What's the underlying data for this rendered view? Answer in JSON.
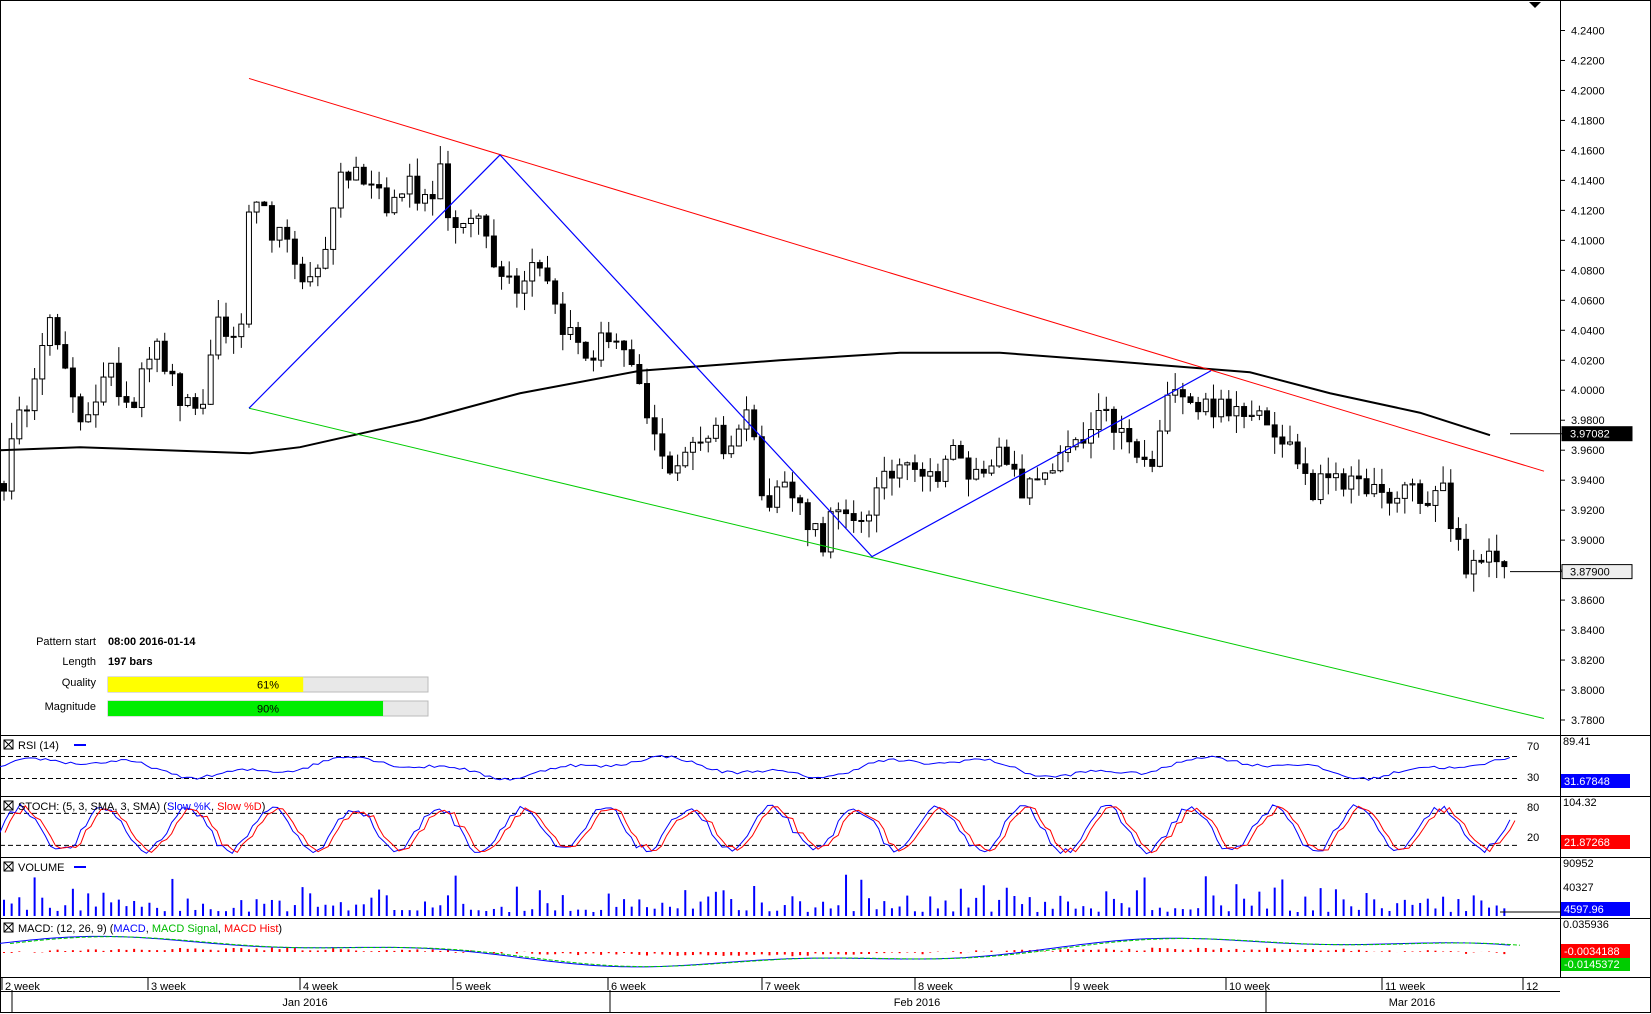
{
  "chart_data": {
    "type": "candlestick",
    "symbol_note": "",
    "main": {
      "ylim": [
        3.77,
        4.255
      ],
      "y_ticks": [
        "4.2400",
        "4.2200",
        "4.2000",
        "4.1800",
        "4.1600",
        "4.1400",
        "4.1200",
        "4.1000",
        "4.0800",
        "4.0600",
        "4.0400",
        "4.0200",
        "4.0000",
        "3.9800",
        "3.9600",
        "3.9400",
        "3.9200",
        "3.9000",
        "3.8800",
        "3.8600",
        "3.8400",
        "3.8200",
        "3.8000",
        "3.7800"
      ],
      "bar_count": 197,
      "candles_seed_closes": [
        3.94,
        3.97,
        3.99,
        4.02,
        4.05,
        4.03,
        4.0,
        3.98,
        3.99,
        4.0,
        4.01,
        4.0,
        3.99,
        4.02,
        4.03,
        4.02,
        4.0,
        3.99,
        3.98,
        4.0,
        4.05,
        4.04,
        4.02,
        4.11,
        4.12,
        4.11,
        4.1,
        4.09,
        4.08,
        4.07,
        4.09,
        4.13,
        4.14,
        4.15,
        4.13,
        4.14,
        4.12,
        4.13,
        4.14,
        4.13,
        4.13,
        4.15,
        4.11,
        4.1,
        4.12,
        4.11,
        4.09,
        4.08,
        4.07,
        4.08,
        4.09,
        4.08,
        4.05,
        4.04,
        4.03,
        4.02,
        4.03,
        4.04,
        4.03,
        4.01,
        3.99,
        3.97,
        3.95,
        3.95,
        3.96,
        3.96,
        3.97,
        3.98,
        3.95,
        3.98,
        3.99,
        3.94,
        3.93,
        3.94,
        3.93,
        3.92,
        3.91,
        3.9,
        3.92,
        3.91,
        3.91,
        3.92,
        3.93,
        3.94,
        3.95,
        3.96,
        3.95,
        3.94,
        3.95,
        3.96,
        3.95,
        3.94,
        3.95,
        3.96,
        3.95,
        3.94,
        3.93,
        3.94,
        3.95,
        3.95,
        3.96,
        3.96,
        3.97,
        3.98,
        3.98,
        3.97,
        3.96,
        3.95,
        3.95,
        3.98,
        4.01,
        4.0,
        3.99,
        3.99,
        3.99,
        3.98,
        3.99,
        3.99,
        3.99,
        3.98,
        3.97,
        3.96,
        3.95,
        3.93,
        3.94,
        3.95,
        3.94,
        3.93,
        3.94,
        3.93,
        3.92,
        3.93,
        3.94,
        3.93,
        3.92,
        3.94,
        3.91,
        3.89,
        3.88,
        3.88,
        3.89,
        3.88
      ],
      "moving_average_label": "",
      "current_price_label": "3.87900",
      "ma_price_label": "3.97082",
      "pattern_lines": {
        "upper_resistance": {
          "color": "#ff0000"
        },
        "lower_support": {
          "color": "#00cc00"
        },
        "zigzag": {
          "color": "#0000ff"
        }
      }
    },
    "x_axis": {
      "week_labels": [
        "2 week",
        "3 week",
        "4 week",
        "5 week",
        "6 week",
        "7 week",
        "8 week",
        "9 week",
        "10 week",
        "11 week",
        "12"
      ],
      "month_labels": [
        "Jan 2016",
        "Feb 2016",
        "Mar 2016"
      ]
    },
    "rsi": {
      "title": "RSI (14)",
      "levels": [
        "70",
        "30"
      ],
      "top_value": "89.41",
      "current": "31.67848",
      "color": "#0000ff"
    },
    "stoch": {
      "title_prefix": "STOCH: (5, 3, SMA, 3, SMA) (",
      "k_label": "Slow %K",
      "sep": ", ",
      "d_label": "Slow %D",
      "title_suffix": ")",
      "levels": [
        "80",
        "20"
      ],
      "top_value": "104.32",
      "current": "21.87268",
      "k_color": "#0000ff",
      "d_color": "#ff0000"
    },
    "volume": {
      "title": "VOLUME",
      "top_value": "90952",
      "mid_value": "40327",
      "current": "4597.96",
      "color": "#0000ff"
    },
    "macd": {
      "title_prefix": "MACD: (12, 26, 9) (",
      "macd_label": "MACD",
      "sep1": ", ",
      "signal_label": "MACD Signal",
      "sep2": ", ",
      "hist_label": "MACD Hist",
      "title_suffix": ")",
      "top_value": "0.035936",
      "current_macd": "-0.0034188",
      "current_signal": "-0.0145372",
      "macd_color": "#0000ff",
      "signal_color": "#00cc00",
      "hist_color": "#ff0000"
    }
  },
  "info_box": {
    "pattern_start_label": "Pattern start",
    "pattern_start_value": "08:00 2016-01-14",
    "length_label": "Length",
    "length_value": "197 bars",
    "quality_label": "Quality",
    "quality_pct": 61,
    "quality_text": "61%",
    "quality_color": "#ffff00",
    "magnitude_label": "Magnitude",
    "magnitude_pct": 90,
    "magnitude_text": "90%",
    "magnitude_color": "#00ee00"
  }
}
